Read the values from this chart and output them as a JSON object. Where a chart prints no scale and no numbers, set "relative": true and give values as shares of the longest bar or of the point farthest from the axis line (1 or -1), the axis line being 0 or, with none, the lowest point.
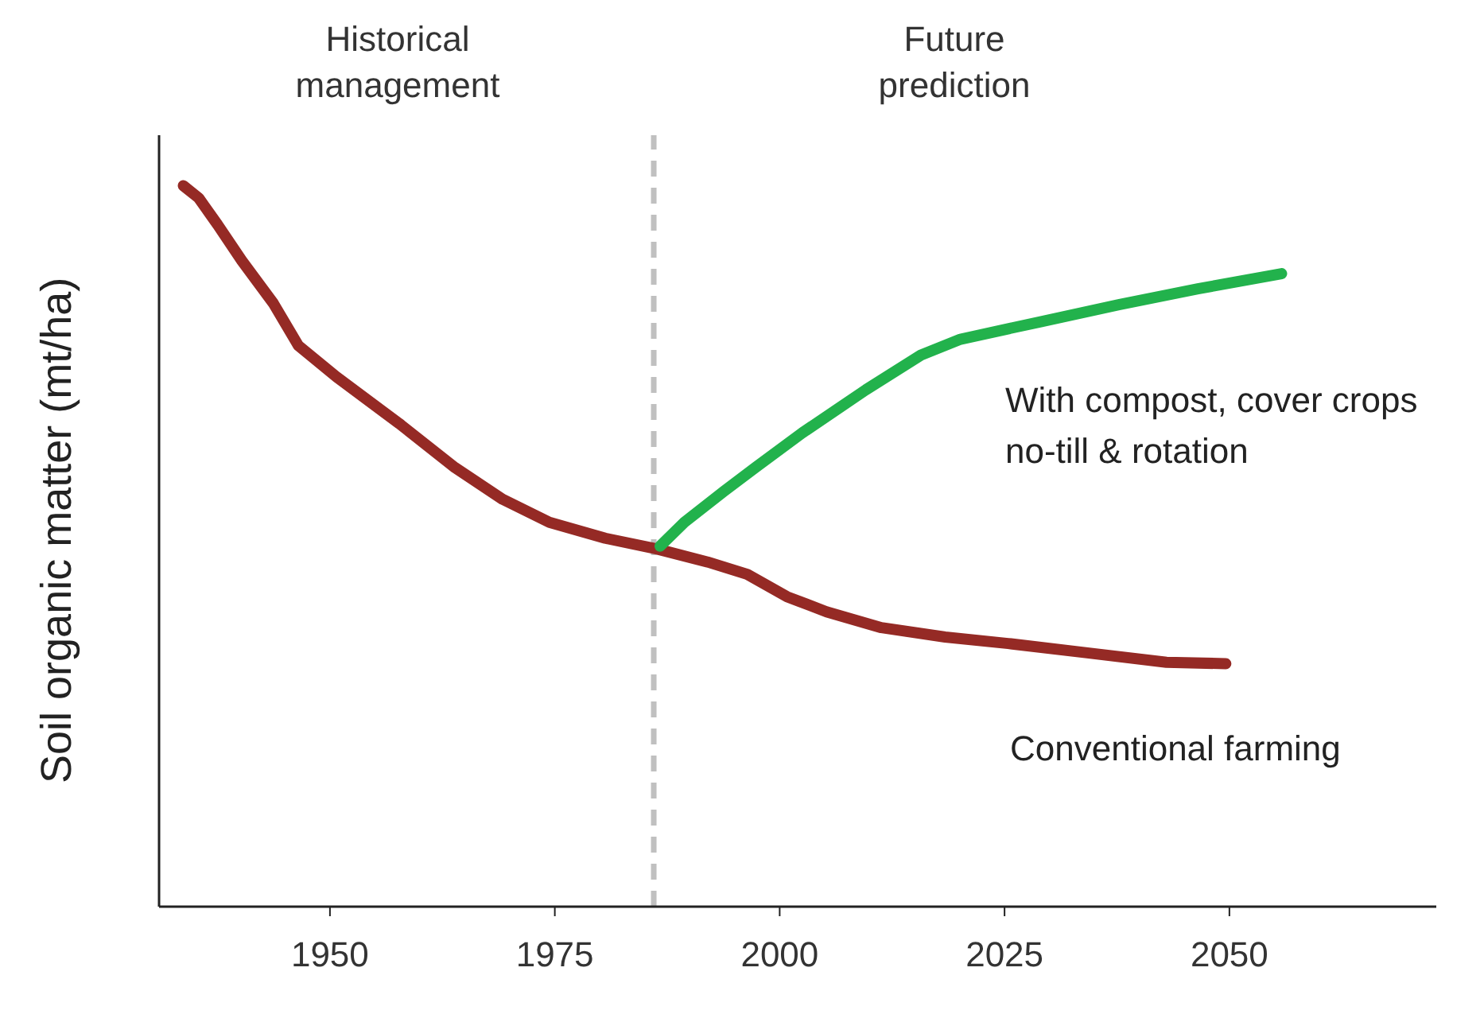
{
  "chart_data": {
    "type": "line",
    "relative": true,
    "ylabel": "Soil organic matter (mt/ha)",
    "xlim": [
      1931,
      2073
    ],
    "xticks": [
      1950,
      1975,
      2000,
      2025,
      2050
    ],
    "legend": false,
    "grid": false,
    "marker": "none",
    "line_style": "solid",
    "annotations": [
      "Historical management",
      "Future prediction"
    ],
    "ref_lines": [
      {
        "axis": "x",
        "value": 1986,
        "color": "#c0c0c0",
        "line_style": "dashed"
      }
    ],
    "series": [
      {
        "name": "Conventional farming",
        "color": "#952a25",
        "x": [
          1933.7,
          1935.4,
          1937.5,
          1940.2,
          1943.7,
          1946.5,
          1950.7,
          1957.7,
          1963.9,
          1969.2,
          1974.4,
          1980.6,
          1986.4,
          1992,
          1996.4,
          2000.8,
          2005.2,
          2011.3,
          2018.4,
          2025.4,
          2034.2,
          2043,
          2049.6
        ],
        "values": [
          1,
          0.983,
          0.946,
          0.896,
          0.837,
          0.778,
          0.735,
          0.67,
          0.609,
          0.565,
          0.533,
          0.511,
          0.496,
          0.478,
          0.461,
          0.43,
          0.409,
          0.387,
          0.374,
          0.365,
          0.352,
          0.339,
          0.337
        ]
      },
      {
        "name": "With compost, cover crops no-till & rotation",
        "color": "#22b24c",
        "x": [
          1986.7,
          1989.4,
          1993.8,
          1997.3,
          2002.5,
          2009.6,
          2015.7,
          2020.1,
          2028.9,
          2037.7,
          2046.5,
          2055.8
        ],
        "values": [
          0.5,
          0.533,
          0.576,
          0.609,
          0.657,
          0.717,
          0.765,
          0.787,
          0.811,
          0.835,
          0.857,
          0.878
        ]
      }
    ]
  }
}
